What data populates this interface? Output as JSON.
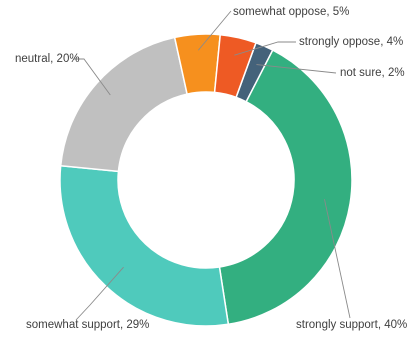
{
  "chart_data": {
    "type": "pie",
    "variant": "donut",
    "title": "",
    "slices": [
      {
        "label": "not sure, 2%",
        "category": "not sure",
        "value": 2,
        "color": "#44627A"
      },
      {
        "label": "strongly support, 40%",
        "category": "strongly support",
        "value": 40,
        "color": "#33AF80"
      },
      {
        "label": "somewhat support, 29%",
        "category": "somewhat support",
        "value": 29,
        "color": "#4FCABC"
      },
      {
        "label": "neutral, 20%",
        "category": "neutral",
        "value": 20,
        "color": "#C0C0C0"
      },
      {
        "label": "somewhat oppose, 5%",
        "category": "somewhat oppose",
        "value": 5,
        "color": "#F6901E"
      },
      {
        "label": "strongly oppose, 4%",
        "category": "strongly oppose",
        "value": 4,
        "color": "#EE5A24"
      }
    ],
    "legend": "none",
    "data_labels": "outside-with-leader-lines"
  }
}
